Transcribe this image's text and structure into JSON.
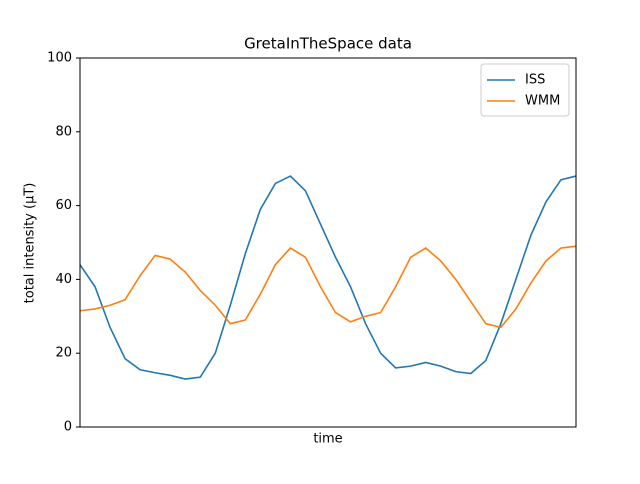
{
  "chart_data": {
    "type": "line",
    "title": "GretaInTheSpace data",
    "xlabel": "time",
    "ylabel": "total intensity (μT)",
    "ylim": [
      0,
      100
    ],
    "yticks": [
      0,
      20,
      40,
      60,
      80,
      100
    ],
    "grid": false,
    "legend": "upper right",
    "series": [
      {
        "name": "ISS",
        "color": "#1f77b4",
        "values": [
          44,
          38,
          27,
          18.5,
          15.5,
          14.7,
          14,
          13,
          13.5,
          20,
          33,
          47,
          59,
          66,
          68,
          64,
          55,
          46,
          38,
          28,
          20,
          16,
          16.5,
          17.5,
          16.5,
          15,
          14.5,
          18,
          28,
          40,
          52,
          61,
          67,
          68
        ]
      },
      {
        "name": "WMM",
        "color": "#ff7f0e",
        "values": [
          31.5,
          32,
          33,
          34.5,
          41,
          46.5,
          45.5,
          42,
          37,
          33,
          28,
          29,
          36,
          44,
          48.5,
          46,
          38,
          31,
          28.5,
          30,
          31,
          38,
          46,
          48.5,
          45,
          40,
          34,
          28,
          27,
          32,
          39,
          45,
          48.5,
          49
        ]
      }
    ]
  }
}
